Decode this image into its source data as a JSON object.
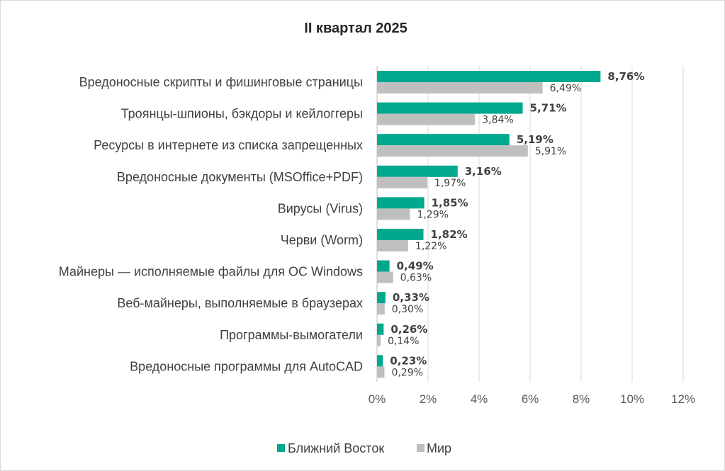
{
  "chart_data": {
    "type": "bar",
    "orientation": "horizontal",
    "title": "II квартал 2025",
    "categories": [
      "Вредоносные скрипты и фишинговые страницы",
      "Троянцы-шпионы, бэкдоры и кейлоггеры",
      "Ресурсы в интернете из списка запрещенных",
      "Вредоносные документы (MSOffice+PDF)",
      "Вирусы (Virus)",
      "Черви (Worm)",
      "Майнеры — исполняемые файлы для ОС Windows",
      "Веб-майнеры, выполняемые в браузерах",
      "Программы-вымогатели",
      "Вредоносные программы для AutoCAD"
    ],
    "series": [
      {
        "name": "Ближний Восток",
        "color": "#00a88e",
        "values": [
          8.76,
          5.71,
          5.19,
          3.16,
          1.85,
          1.82,
          0.49,
          0.33,
          0.26,
          0.23
        ],
        "labels": [
          "8,76%",
          "5,71%",
          "5,19%",
          "3,16%",
          "1,85%",
          "1,82%",
          "0,49%",
          "0,33%",
          "0,26%",
          "0,23%"
        ]
      },
      {
        "name": "Мир",
        "color": "#bfbfbf",
        "values": [
          6.49,
          3.84,
          5.91,
          1.97,
          1.29,
          1.22,
          0.63,
          0.3,
          0.14,
          0.29
        ],
        "labels": [
          "6,49%",
          "3,84%",
          "5,91%",
          "1,97%",
          "1,29%",
          "1,22%",
          "0,63%",
          "0,30%",
          "0,14%",
          "0,29%"
        ]
      }
    ],
    "xlim": [
      0,
      12
    ],
    "xticks": [
      0,
      2,
      4,
      6,
      8,
      10,
      12
    ],
    "xtick_labels": [
      "0%",
      "2%",
      "4%",
      "6%",
      "8%",
      "10%",
      "12%"
    ],
    "grid": true,
    "legend_position": "bottom"
  }
}
